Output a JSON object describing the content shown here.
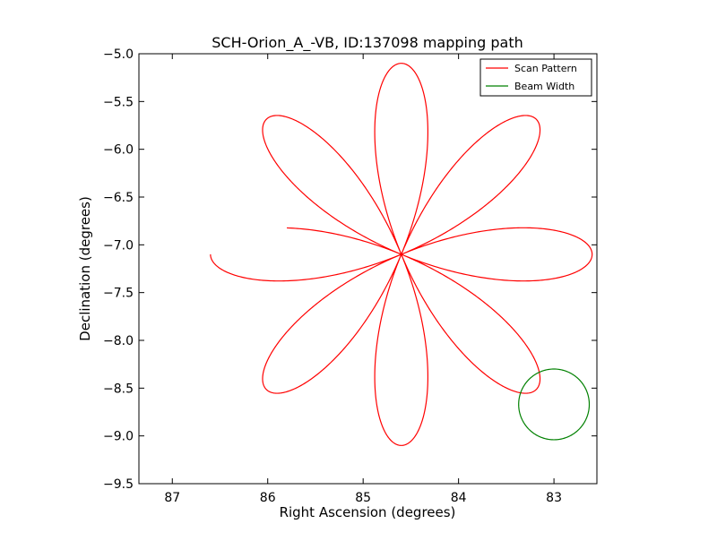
{
  "chart_data": {
    "type": "line",
    "title": "SCH-Orion_A_-VB, ID:137098 mapping path",
    "xlabel": "Right Ascension (degrees)",
    "ylabel": "Declination (degrees)",
    "xlim": [
      87.35,
      82.55
    ],
    "ylim": [
      -9.5,
      -5.0
    ],
    "x_ticks": [
      87,
      86,
      85,
      84,
      83
    ],
    "x_tick_labels": [
      "87",
      "86",
      "85",
      "84",
      "83"
    ],
    "y_ticks": [
      -5.0,
      -5.5,
      -6.0,
      -6.5,
      -7.0,
      -7.5,
      -8.0,
      -8.5,
      -9.0,
      -9.5
    ],
    "y_tick_labels": [
      "−5.0",
      "−5.5",
      "−6.0",
      "−6.5",
      "−7.0",
      "−7.5",
      "−8.0",
      "−8.5",
      "−9.0",
      "−9.5"
    ],
    "grid": false,
    "legend_position": "top-right",
    "series": [
      {
        "name": "Scan Pattern",
        "color": "#ff0000",
        "kind": "rose-curve",
        "center": [
          84.6,
          -7.1
        ],
        "petal_radius_deg": 2.0,
        "petals": 8,
        "start_angle_deg": 180,
        "end_angle_deg": 167
      },
      {
        "name": "Beam Width",
        "color": "#008000",
        "kind": "circle",
        "center": [
          83.0,
          -8.67
        ],
        "radius_deg": 0.37
      }
    ]
  }
}
